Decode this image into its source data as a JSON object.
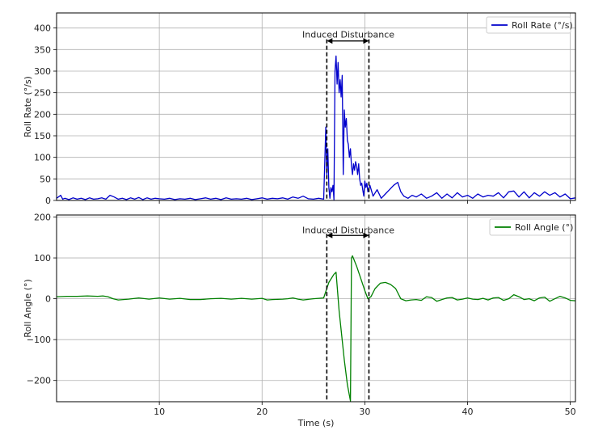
{
  "chart_data": [
    {
      "type": "line",
      "ylabel": "Roll Rate (°/s)",
      "xlabel": "",
      "xlim": [
        0,
        50.5
      ],
      "ylim": [
        0,
        435
      ],
      "xticks": [
        10,
        20,
        30,
        40,
        50
      ],
      "yticks": [
        0,
        50,
        100,
        150,
        200,
        250,
        300,
        350,
        400
      ],
      "ytick_labels": [
        "0",
        "50",
        "100",
        "150",
        "200",
        "250",
        "300",
        "350",
        "400"
      ],
      "grid": true,
      "legend_position": "top-right",
      "series": [
        {
          "name": "Roll Rate (°/s)",
          "color": "#0000cc",
          "x": [
            0,
            0.4,
            0.6,
            0.8,
            1.2,
            1.6,
            2.0,
            2.4,
            2.8,
            3.2,
            3.6,
            4.0,
            4.4,
            4.8,
            5.2,
            5.6,
            6.0,
            6.4,
            6.8,
            7.2,
            7.6,
            8.0,
            8.4,
            8.8,
            9.2,
            9.6,
            10.0,
            10.5,
            11.0,
            11.5,
            12.0,
            12.5,
            13.0,
            13.5,
            14.0,
            14.5,
            15.0,
            15.5,
            16.0,
            16.5,
            17.0,
            17.5,
            18.0,
            18.5,
            19.0,
            19.5,
            20.0,
            20.5,
            21.0,
            21.5,
            22.0,
            22.5,
            23.0,
            23.5,
            24.0,
            24.5,
            25.0,
            25.5,
            26.0,
            26.2,
            26.3,
            26.4,
            26.5,
            26.6,
            26.7,
            26.8,
            26.9,
            27.0,
            27.1,
            27.2,
            27.3,
            27.4,
            27.5,
            27.6,
            27.7,
            27.8,
            27.9,
            28.0,
            28.1,
            28.2,
            28.3,
            28.4,
            28.5,
            28.6,
            28.7,
            28.8,
            28.9,
            29.0,
            29.1,
            29.2,
            29.3,
            29.4,
            29.5,
            29.6,
            29.7,
            29.8,
            29.9,
            30.0,
            30.1,
            30.2,
            30.3,
            30.5,
            30.8,
            31.2,
            31.6,
            32.0,
            32.4,
            32.8,
            33.2,
            33.5,
            33.8,
            34.2,
            34.6,
            35.0,
            35.5,
            36.0,
            36.5,
            37.0,
            37.5,
            38.0,
            38.5,
            39.0,
            39.5,
            40.0,
            40.5,
            41.0,
            41.5,
            42.0,
            42.5,
            43.0,
            43.5,
            44.0,
            44.5,
            45.0,
            45.5,
            46.0,
            46.5,
            47.0,
            47.5,
            48.0,
            48.5,
            49.0,
            49.5,
            50.0,
            50.5
          ],
          "y": [
            5,
            12,
            3,
            5,
            2,
            6,
            3,
            5,
            2,
            6,
            3,
            4,
            6,
            3,
            12,
            8,
            3,
            5,
            2,
            6,
            3,
            7,
            2,
            6,
            3,
            5,
            4,
            3,
            5,
            2,
            4,
            3,
            5,
            2,
            4,
            6,
            3,
            5,
            2,
            6,
            3,
            4,
            3,
            5,
            2,
            4,
            6,
            3,
            5,
            4,
            6,
            3,
            8,
            5,
            10,
            4,
            3,
            5,
            3,
            170,
            60,
            120,
            30,
            5,
            30,
            20,
            35,
            2,
            300,
            335,
            270,
            320,
            250,
            280,
            240,
            290,
            60,
            210,
            170,
            190,
            140,
            130,
            100,
            120,
            80,
            60,
            85,
            70,
            90,
            80,
            60,
            85,
            50,
            35,
            40,
            25,
            10,
            45,
            30,
            40,
            20,
            35,
            10,
            25,
            5,
            15,
            25,
            35,
            42,
            20,
            10,
            5,
            12,
            8,
            15,
            5,
            10,
            18,
            5,
            15,
            6,
            18,
            8,
            12,
            5,
            15,
            8,
            12,
            10,
            18,
            6,
            20,
            22,
            8,
            20,
            6,
            18,
            10,
            20,
            12,
            18,
            8,
            15,
            4,
            6
          ]
        }
      ],
      "annotations": [
        {
          "text": "Induced Disturbance",
          "x": 28.4,
          "y": 385
        }
      ],
      "vlines": [
        26.3,
        30.4
      ],
      "arrow_y": 370
    },
    {
      "type": "line",
      "ylabel": "Roll Angle (°)",
      "xlabel": "Time (s)",
      "xlim": [
        0,
        50.5
      ],
      "ylim": [
        -252,
        205
      ],
      "xticks": [
        10,
        20,
        30,
        40,
        50
      ],
      "yticks": [
        -200,
        -100,
        0,
        100,
        200
      ],
      "ytick_labels": [
        "−200",
        "−100",
        "0",
        "100",
        "200"
      ],
      "xtick_labels": [
        "10",
        "20",
        "30",
        "40",
        "50"
      ],
      "grid": true,
      "legend_position": "top-right",
      "series": [
        {
          "name": "Roll Angle (°)",
          "color": "#008000",
          "x": [
            0,
            1,
            2,
            3,
            4,
            4.5,
            5,
            5.5,
            6,
            7,
            8,
            9,
            10,
            11,
            12,
            13,
            14,
            15,
            16,
            17,
            18,
            19,
            20,
            20.5,
            21,
            22,
            22.5,
            23,
            23.5,
            24,
            25,
            25.5,
            26,
            26.3,
            26.5,
            27,
            27.2,
            27.5,
            28,
            28.3,
            28.6,
            28.7,
            28.8,
            29.2,
            29.6,
            30.0,
            30.3,
            30.6,
            31.0,
            31.5,
            32.0,
            32.5,
            33.0,
            33.5,
            34.0,
            34.5,
            35.0,
            35.5,
            36.0,
            36.5,
            37.0,
            37.5,
            38.0,
            38.5,
            39.0,
            39.5,
            40.0,
            40.5,
            41.0,
            41.5,
            42.0,
            42.5,
            43.0,
            43.5,
            44.0,
            44.5,
            45.0,
            45.5,
            46.0,
            46.5,
            47.0,
            47.5,
            48.0,
            48.5,
            49.0,
            49.5,
            50.0,
            50.5
          ],
          "y": [
            5,
            6,
            6,
            7,
            6,
            7,
            5,
            0,
            -3,
            -1,
            2,
            -1,
            2,
            -1,
            1,
            -2,
            -2,
            0,
            1,
            -1,
            1,
            -1,
            1,
            -3,
            -2,
            -1,
            0,
            2,
            -1,
            -3,
            0,
            1,
            2,
            25,
            40,
            60,
            65,
            -30,
            -150,
            -210,
            -250,
            100,
            105,
            80,
            50,
            20,
            0,
            5,
            25,
            38,
            40,
            35,
            25,
            0,
            -5,
            -3,
            -2,
            -4,
            5,
            3,
            -6,
            -2,
            2,
            3,
            -3,
            -1,
            2,
            -1,
            -2,
            1,
            -3,
            2,
            3,
            -4,
            0,
            10,
            5,
            -2,
            0,
            -5,
            2,
            4,
            -6,
            0,
            6,
            2,
            -4,
            -5
          ]
        }
      ],
      "annotations": [
        {
          "text": "Induced Disturbance",
          "x": 28.4,
          "y": 168
        }
      ],
      "vlines": [
        26.3,
        30.4
      ],
      "arrow_y": 155
    }
  ]
}
